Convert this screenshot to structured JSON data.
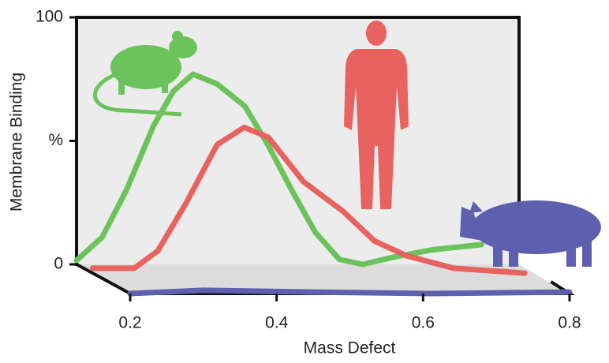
{
  "chart_data": {
    "type": "line",
    "x_label": "Mass Defect",
    "y_label": "Membrane Binding",
    "xlim": [
      0.2,
      0.8
    ],
    "xticks": [
      0.2,
      0.4,
      0.6,
      0.8
    ],
    "ylim": [
      0,
      100
    ],
    "yticks": [
      0,
      {
        "value": 50,
        "label": "%"
      },
      100
    ],
    "series": [
      {
        "color": "#6cc35b",
        "x": [
          0.2,
          0.235,
          0.268,
          0.305,
          0.332,
          0.359,
          0.392,
          0.43,
          0.462,
          0.494,
          0.526,
          0.559,
          0.591,
          0.634,
          0.688,
          0.753
        ],
        "values": [
          1.6,
          11,
          30,
          56,
          70,
          77,
          73,
          64,
          48,
          30,
          13,
          2,
          0,
          3,
          6,
          8
        ]
      },
      {
        "color": "#e8625f",
        "x": [
          0.2,
          0.257,
          0.289,
          0.327,
          0.37,
          0.407,
          0.44,
          0.488,
          0.542,
          0.585,
          0.629,
          0.693,
          0.79
        ],
        "values": [
          2,
          2,
          9,
          28,
          52,
          59,
          55,
          37,
          25,
          13,
          7,
          2,
          0
        ]
      },
      {
        "color": "#5f5fb0",
        "x": [
          0.2,
          0.3,
          0.45,
          0.61,
          0.8
        ],
        "values": [
          0,
          1.3,
          0.6,
          0,
          0.6
        ]
      }
    ]
  }
}
